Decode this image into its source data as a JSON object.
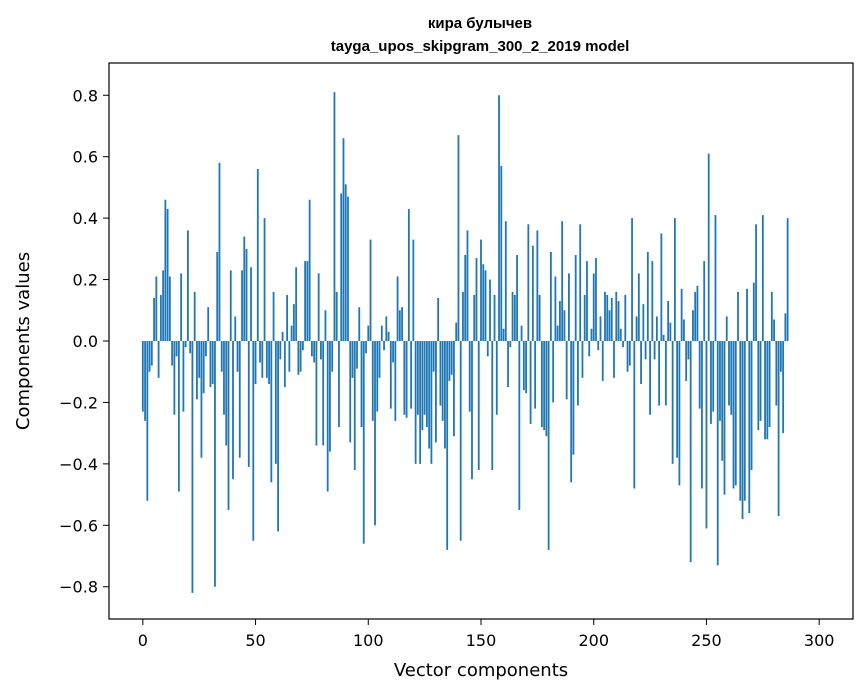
{
  "chart_data": {
    "type": "bar",
    "title": "кира булычев",
    "subtitle": "tayga_upos_skipgram_300_2_2019 model",
    "xlabel": "Vector components",
    "ylabel": "Components values",
    "xlim": [
      -15,
      315
    ],
    "ylim": [
      -0.905,
      0.905
    ],
    "xticks": [
      0,
      50,
      100,
      150,
      200,
      250,
      300
    ],
    "yticks": [
      -0.8,
      -0.6,
      -0.4,
      -0.2,
      0.0,
      0.2,
      0.4,
      0.6,
      0.8
    ],
    "ytick_labels": [
      "−0.8",
      "−0.6",
      "−0.4",
      "−0.2",
      "0.0",
      "0.2",
      "0.4",
      "0.6",
      "0.8"
    ],
    "bar_color": "#1f77b4",
    "values": [
      -0.23,
      -0.26,
      -0.52,
      -0.1,
      -0.08,
      0.14,
      0.21,
      -0.12,
      0.15,
      0.23,
      0.46,
      0.43,
      0.21,
      -0.08,
      -0.24,
      -0.05,
      -0.49,
      0.22,
      -0.23,
      -0.02,
      0.36,
      -0.04,
      -0.82,
      0.16,
      -0.19,
      -0.12,
      -0.38,
      -0.17,
      -0.05,
      0.11,
      -0.15,
      -0.14,
      -0.8,
      0.29,
      0.58,
      -0.1,
      -0.24,
      -0.34,
      -0.55,
      0.23,
      -0.45,
      0.08,
      -0.1,
      -0.38,
      0.23,
      0.34,
      0.3,
      -0.41,
      0.24,
      -0.65,
      -0.14,
      0.56,
      -0.07,
      -0.12,
      0.4,
      -0.12,
      -0.14,
      -0.46,
      0.16,
      -0.4,
      -0.62,
      -0.06,
      0.03,
      -0.15,
      0.15,
      -0.1,
      0.05,
      0.12,
      0.24,
      -0.11,
      -0.1,
      -0.03,
      0.26,
      0.26,
      0.46,
      -0.05,
      -0.07,
      -0.34,
      0.22,
      -0.06,
      -0.34,
      0.1,
      -0.49,
      -0.36,
      -0.1,
      0.81,
      0.16,
      -0.28,
      0.48,
      0.66,
      0.51,
      0.47,
      -0.33,
      -0.12,
      -0.42,
      -0.09,
      0.11,
      -0.28,
      -0.66,
      -0.04,
      0.05,
      0.33,
      -0.26,
      -0.6,
      -0.23,
      -0.12,
      0.05,
      -0.03,
      0.08,
      0.03,
      -0.22,
      -0.07,
      -0.26,
      0.21,
      0.1,
      0.11,
      -0.24,
      -0.25,
      0.43,
      -0.22,
      0.33,
      -0.4,
      -0.24,
      -0.4,
      -0.29,
      -0.24,
      -0.28,
      -0.35,
      -0.4,
      -0.1,
      -0.33,
      0.14,
      -0.21,
      -0.26,
      -0.35,
      -0.68,
      -0.13,
      -0.11,
      -0.31,
      0.06,
      0.67,
      -0.65,
      0.16,
      0.28,
      0.36,
      -0.23,
      -0.45,
      0.15,
      0.27,
      -0.42,
      0.33,
      0.25,
      0.23,
      -0.05,
      0.2,
      -0.42,
      0.15,
      -0.24,
      0.8,
      0.57,
      0.04,
      0.39,
      -0.15,
      -0.02,
      0.16,
      0.15,
      0.28,
      -0.55,
      0.05,
      -0.16,
      -0.17,
      0.38,
      -0.27,
      0.31,
      -0.22,
      0.36,
      0.15,
      -0.28,
      -0.29,
      -0.31,
      -0.68,
      0.29,
      -0.2,
      0.21,
      0.05,
      0.13,
      0.39,
      0.1,
      -0.19,
      0.22,
      -0.46,
      -0.37,
      0.28,
      -0.21,
      0.38,
      -0.12,
      0.15,
      0.26,
      -0.05,
      0.04,
      0.22,
      0.27,
      -0.03,
      0.08,
      -0.13,
      0.16,
      0.15,
      0.1,
      0.14,
      -0.12,
      0.16,
      0.13,
      0.04,
      -0.02,
      0.15,
      -0.1,
      -0.08,
      0.4,
      -0.48,
      0.08,
      0.22,
      -0.14,
      0.12,
      -0.06,
      0.29,
      -0.24,
      0.26,
      -0.06,
      0.08,
      -0.21,
      0.35,
      0.02,
      -0.21,
      0.13,
      0.06,
      -0.4,
      0.4,
      -0.38,
      -0.47,
      0.17,
      0.07,
      -0.13,
      -0.06,
      -0.72,
      0.1,
      0.16,
      0.18,
      -0.22,
      -0.48,
      0.26,
      -0.61,
      0.61,
      -0.27,
      -0.23,
      0.41,
      -0.73,
      -0.26,
      -0.39,
      -0.5,
      0.08,
      -0.21,
      -0.24,
      -0.48,
      -0.47,
      0.16,
      -0.52,
      -0.58,
      -0.52,
      0.17,
      -0.56,
      -0.42,
      0.19,
      0.38,
      -0.29,
      -0.26,
      0.41,
      -0.32,
      -0.32,
      -0.28,
      0.16,
      0.07,
      -0.21,
      -0.57,
      -0.1,
      -0.3,
      0.09,
      0.4
    ]
  }
}
